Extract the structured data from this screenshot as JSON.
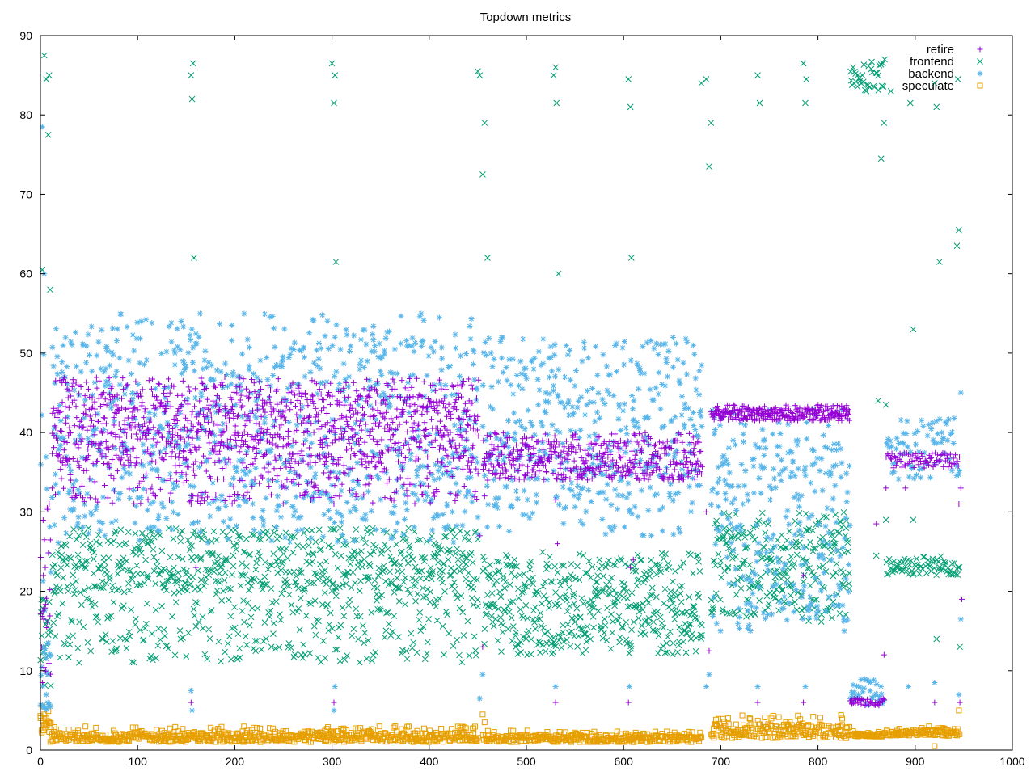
{
  "chart_data": {
    "type": "scatter",
    "title": "Topdown metrics",
    "xlabel": "",
    "ylabel": "",
    "xlim": [
      0,
      1000
    ],
    "ylim": [
      0,
      90
    ],
    "x_ticks": [
      0,
      100,
      200,
      300,
      400,
      500,
      600,
      700,
      800,
      900,
      1000
    ],
    "y_ticks": [
      0,
      10,
      20,
      30,
      40,
      50,
      60,
      70,
      80,
      90
    ],
    "grid": false,
    "legend_position": "top-right",
    "series": [
      {
        "name": "retire",
        "marker": "plus",
        "color": "#9400d3"
      },
      {
        "name": "frontend",
        "marker": "cross",
        "color": "#009e73"
      },
      {
        "name": "backend",
        "marker": "star",
        "color": "#56b4e9"
      },
      {
        "name": "speculate",
        "marker": "square",
        "color": "#e69f00"
      }
    ],
    "segments": [
      {
        "x_start": 0,
        "x_end": 10,
        "retire": [
          [
            8,
            22
          ],
          [
            6,
            31
          ]
        ],
        "frontend": [
          [
            12,
            22
          ],
          [
            8,
            16
          ]
        ],
        "backend": [
          [
            10,
            50
          ],
          [
            8,
            14
          ],
          [
            5,
            6
          ]
        ],
        "speculate": [
          [
            0,
            10,
            2.0,
            5.8
          ]
        ]
      },
      {
        "x_start": 12,
        "x_end": 450,
        "retire": [
          [
            40,
            47
          ],
          [
            36,
            45
          ],
          [
            31,
            40
          ]
        ],
        "frontend": [
          [
            20,
            28
          ],
          [
            11,
            25
          ]
        ],
        "backend": [
          [
            28,
            55
          ],
          [
            26,
            52
          ]
        ],
        "speculate": [
          [
            10,
            450,
            1.0,
            3.0
          ]
        ]
      },
      {
        "x_start": 455,
        "x_end": 680,
        "retire": [
          [
            34,
            39
          ],
          [
            34,
            40
          ]
        ],
        "frontend": [
          [
            12,
            25
          ],
          [
            13,
            24
          ]
        ],
        "backend": [
          [
            27,
            52
          ],
          [
            30,
            52
          ]
        ],
        "speculate": [
          [
            455,
            680,
            1.0,
            2.5
          ]
        ]
      },
      {
        "x_start": 690,
        "x_end": 832,
        "retire": [
          [
            41.5,
            43.5
          ],
          [
            41.5,
            43
          ]
        ],
        "frontend": [
          [
            16,
            30
          ],
          [
            17,
            29
          ]
        ],
        "backend": [
          [
            15,
            40
          ],
          [
            16,
            43
          ]
        ],
        "speculate": [
          [
            690,
            832,
            1.5,
            4.5
          ]
        ]
      },
      {
        "x_start": 833,
        "x_end": 868,
        "retire": [
          [
            5.5,
            6.5
          ]
        ],
        "frontend": [
          [
            83,
            87
          ]
        ],
        "backend": [
          [
            5.5,
            9
          ]
        ],
        "speculate": [
          [
            833,
            868,
            1.7,
            2.4
          ]
        ]
      },
      {
        "x_start": 870,
        "x_end": 945,
        "retire": [
          [
            35.5,
            37.5
          ]
        ],
        "frontend": [
          [
            22,
            24.5
          ]
        ],
        "backend": [
          [
            34,
            42
          ]
        ],
        "speculate": [
          [
            870,
            945,
            1.8,
            3.0
          ]
        ]
      }
    ],
    "outliers": {
      "retire": [
        [
          2,
          8.5
        ],
        [
          3,
          22
        ],
        [
          5,
          23
        ],
        [
          7,
          30.5
        ],
        [
          9,
          31
        ],
        [
          12,
          33
        ],
        [
          155,
          6
        ],
        [
          155,
          31
        ],
        [
          157,
          32
        ],
        [
          160,
          23
        ],
        [
          302,
          6
        ],
        [
          302,
          31
        ],
        [
          304,
          32
        ],
        [
          452,
          27
        ],
        [
          455,
          13
        ],
        [
          457,
          32
        ],
        [
          530,
          6
        ],
        [
          530,
          31.5
        ],
        [
          532,
          26
        ],
        [
          605,
          6
        ],
        [
          607,
          23
        ],
        [
          610,
          24
        ],
        [
          685,
          30
        ],
        [
          688,
          12.5
        ],
        [
          738,
          6
        ],
        [
          785,
          22
        ],
        [
          785,
          6
        ],
        [
          835,
          5.8
        ],
        [
          860,
          28.5
        ],
        [
          868,
          12
        ],
        [
          870,
          33
        ],
        [
          890,
          33
        ],
        [
          920,
          6
        ],
        [
          945,
          31
        ],
        [
          947,
          33
        ],
        [
          948,
          19
        ],
        [
          946,
          6
        ]
      ],
      "frontend": [
        [
          2,
          60.5
        ],
        [
          4,
          87.5
        ],
        [
          6,
          84.5
        ],
        [
          8,
          77.5
        ],
        [
          9,
          85
        ],
        [
          10,
          58
        ],
        [
          155,
          85
        ],
        [
          156,
          82
        ],
        [
          157,
          86.5
        ],
        [
          158,
          62
        ],
        [
          300,
          86.5
        ],
        [
          302,
          81.5
        ],
        [
          303,
          85
        ],
        [
          304,
          61.5
        ],
        [
          450,
          85.5
        ],
        [
          452,
          85
        ],
        [
          455,
          72.5
        ],
        [
          457,
          79
        ],
        [
          460,
          62
        ],
        [
          528,
          85
        ],
        [
          530,
          86
        ],
        [
          531,
          81.5
        ],
        [
          533,
          60
        ],
        [
          605,
          84.5
        ],
        [
          607,
          81
        ],
        [
          608,
          62
        ],
        [
          680,
          84
        ],
        [
          685,
          84.5
        ],
        [
          688,
          73.5
        ],
        [
          690,
          79
        ],
        [
          738,
          85
        ],
        [
          740,
          81.5
        ],
        [
          785,
          86.5
        ],
        [
          787,
          81.5
        ],
        [
          788,
          84.5
        ],
        [
          865,
          74.5
        ],
        [
          868,
          79
        ],
        [
          875,
          83
        ],
        [
          895,
          81.5
        ],
        [
          898,
          53
        ],
        [
          920,
          84
        ],
        [
          922,
          81
        ],
        [
          925,
          61.5
        ],
        [
          943,
          63.5
        ],
        [
          945,
          65.5
        ],
        [
          944,
          84.5
        ],
        [
          862,
          44
        ],
        [
          870,
          43.5
        ],
        [
          860,
          24.5
        ],
        [
          870,
          29
        ],
        [
          898,
          29
        ],
        [
          922,
          14
        ],
        [
          946,
          13
        ]
      ],
      "backend": [
        [
          2,
          78.5
        ],
        [
          4,
          60
        ],
        [
          3,
          13
        ],
        [
          6,
          7
        ],
        [
          155,
          7.5
        ],
        [
          156,
          5
        ],
        [
          302,
          5
        ],
        [
          303,
          8
        ],
        [
          452,
          6.5
        ],
        [
          455,
          9.5
        ],
        [
          530,
          8
        ],
        [
          606,
          8
        ],
        [
          685,
          8
        ],
        [
          688,
          9.5
        ],
        [
          738,
          8
        ],
        [
          787,
          8
        ],
        [
          893,
          8
        ],
        [
          920,
          8.5
        ],
        [
          945,
          7
        ],
        [
          947,
          16.5
        ],
        [
          947,
          45
        ]
      ],
      "speculate": [
        [
          2,
          5.5
        ],
        [
          4,
          4.5
        ],
        [
          6,
          4
        ],
        [
          455,
          4.5
        ],
        [
          457,
          3.5
        ],
        [
          920,
          0.5
        ],
        [
          945,
          5
        ]
      ]
    }
  }
}
